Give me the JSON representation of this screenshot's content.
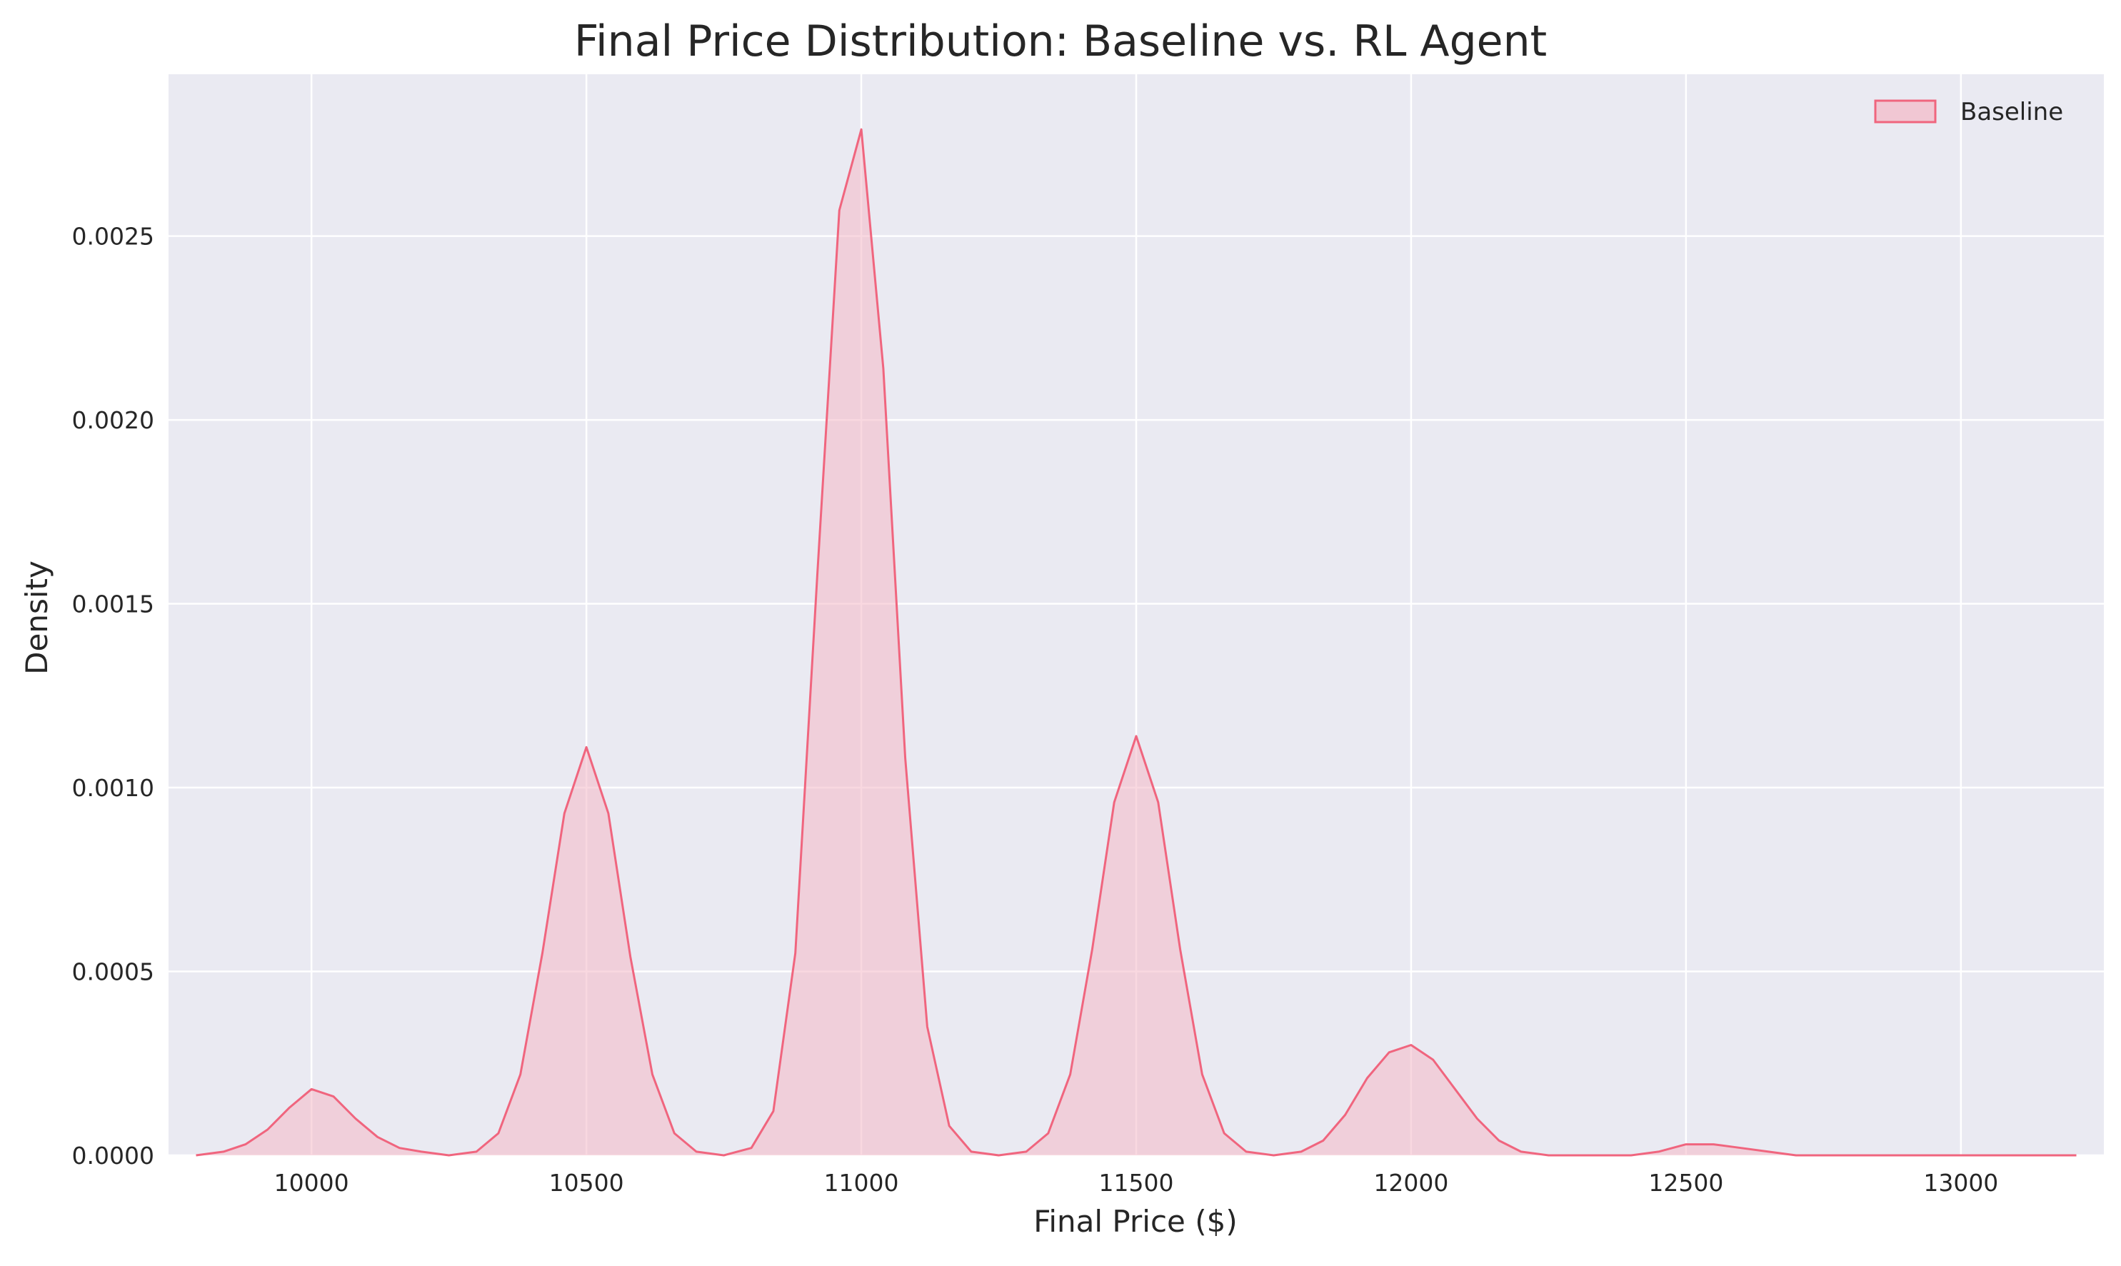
{
  "chart_data": {
    "type": "area",
    "title": "Final Price Distribution: Baseline vs. RL Agent",
    "xlabel": "Final Price ($)",
    "ylabel": "Density",
    "xlim": [
      9740,
      13260
    ],
    "ylim": [
      0,
      0.00294
    ],
    "xticks": [
      10000,
      10500,
      11000,
      11500,
      12000,
      12500,
      13000
    ],
    "xtick_labels": [
      "10000",
      "10500",
      "11000",
      "11500",
      "12000",
      "12500",
      "13000"
    ],
    "yticks": [
      0,
      0.0005,
      0.001,
      0.0015,
      0.002,
      0.0025
    ],
    "ytick_labels": [
      "0.0000",
      "0.0005",
      "0.0010",
      "0.0015",
      "0.0020",
      "0.0025"
    ],
    "grid": true,
    "legend_position": "top-right",
    "colors": {
      "background": "#EAEAF2",
      "grid": "#FFFFFF",
      "series_line": "#F0657E",
      "series_fill": "#F4B8C6"
    },
    "series": [
      {
        "name": "Baseline",
        "x": [
          9790,
          9840,
          9880,
          9920,
          9960,
          10000,
          10040,
          10080,
          10120,
          10160,
          10200,
          10250,
          10300,
          10340,
          10380,
          10420,
          10460,
          10500,
          10540,
          10580,
          10620,
          10660,
          10700,
          10750,
          10800,
          10840,
          10880,
          10920,
          10960,
          11000,
          11040,
          11080,
          11120,
          11160,
          11200,
          11250,
          11300,
          11340,
          11380,
          11420,
          11460,
          11500,
          11540,
          11580,
          11620,
          11660,
          11700,
          11750,
          11800,
          11840,
          11880,
          11920,
          11960,
          12000,
          12040,
          12080,
          12120,
          12160,
          12200,
          12250,
          12300,
          12350,
          12400,
          12450,
          12500,
          12550,
          12600,
          12650,
          12700,
          12800,
          12900,
          13000,
          13100,
          13210
        ],
        "y": [
          0.0,
          1e-05,
          3e-05,
          7e-05,
          0.00013,
          0.00018,
          0.00016,
          0.0001,
          5e-05,
          2e-05,
          1e-05,
          0.0,
          1e-05,
          6e-05,
          0.00022,
          0.00055,
          0.00093,
          0.00111,
          0.00093,
          0.00054,
          0.00022,
          6e-05,
          1e-05,
          0.0,
          2e-05,
          0.00012,
          0.00055,
          0.00158,
          0.00257,
          0.00279,
          0.00214,
          0.00108,
          0.00035,
          8e-05,
          1e-05,
          0.0,
          1e-05,
          6e-05,
          0.00022,
          0.00056,
          0.00096,
          0.00114,
          0.00096,
          0.00056,
          0.00022,
          6e-05,
          1e-05,
          0.0,
          1e-05,
          4e-05,
          0.00011,
          0.00021,
          0.00028,
          0.0003,
          0.00026,
          0.00018,
          0.0001,
          4e-05,
          1e-05,
          0.0,
          0.0,
          0.0,
          0.0,
          1e-05,
          3e-05,
          3e-05,
          2e-05,
          1e-05,
          0.0,
          0.0,
          0.0,
          0.0,
          0.0,
          0.0
        ]
      }
    ]
  }
}
